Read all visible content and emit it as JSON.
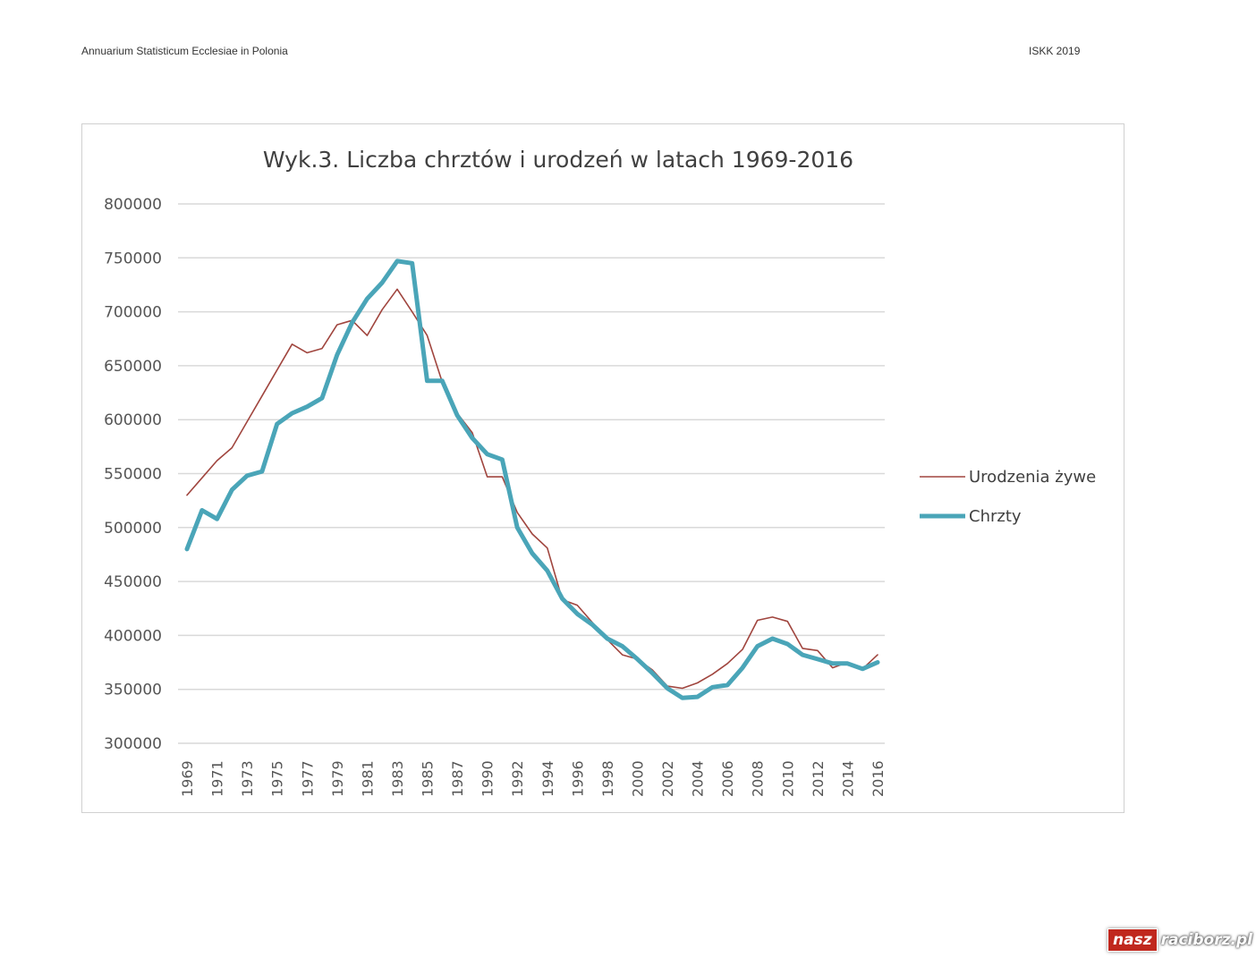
{
  "header": {
    "left": "Annuarium Statisticum Ecclesiae in Polonia",
    "right": "ISKK 2019"
  },
  "logo": {
    "part1": "nasz",
    "part2": "raciborz.pl"
  },
  "chart_data": {
    "type": "line",
    "title": "Wyk.3. Liczba chrztów i urodzeń w latach 1969-2016",
    "xlabel": "",
    "ylabel": "",
    "ylim": [
      300000,
      800000
    ],
    "yticks": [
      "300000",
      "350000",
      "400000",
      "450000",
      "500000",
      "550000",
      "600000",
      "650000",
      "700000",
      "750000",
      "800000"
    ],
    "grid": true,
    "legend": "right",
    "x": [
      "1969",
      "1970",
      "1971",
      "1972",
      "1973",
      "1974",
      "1975",
      "1976",
      "1977",
      "1978",
      "1979",
      "1980",
      "1981",
      "1982",
      "1983",
      "1984",
      "1985",
      "1986",
      "1987",
      "1988",
      "1990",
      "1991",
      "1992",
      "1993",
      "1994",
      "1995",
      "1996",
      "1997",
      "1998",
      "1999",
      "2000",
      "2001",
      "2002",
      "2003",
      "2004",
      "2005",
      "2006",
      "2007",
      "2008",
      "2009",
      "2010",
      "2011",
      "2012",
      "2013",
      "2014",
      "2015",
      "2016"
    ],
    "series": [
      {
        "name": "Urodzenia żywe",
        "color": "#a0453e",
        "values": [
          530000,
          546000,
          562000,
          574000,
          598000,
          622000,
          646000,
          670000,
          662000,
          666000,
          688000,
          692000,
          678000,
          702000,
          721000,
          700000,
          678000,
          635000,
          606000,
          588000,
          547000,
          547000,
          514000,
          494000,
          481000,
          433000,
          428000,
          412000,
          396000,
          382000,
          378000,
          368000,
          353000,
          351000,
          356000,
          364000,
          374000,
          387000,
          414000,
          417000,
          413000,
          388000,
          386000,
          370000,
          375000,
          369000,
          382000
        ]
      },
      {
        "name": "Chrzty",
        "color": "#4aa5b8",
        "values": [
          480000,
          516000,
          508000,
          535000,
          548000,
          552000,
          596000,
          606000,
          612000,
          620000,
          660000,
          690000,
          712000,
          727000,
          747000,
          745000,
          636000,
          636000,
          604000,
          583000,
          568000,
          563000,
          500000,
          476000,
          460000,
          434000,
          420000,
          410000,
          397000,
          390000,
          378000,
          365000,
          351000,
          342000,
          343000,
          352000,
          354000,
          370000,
          390000,
          397000,
          392000,
          382000,
          378000,
          374000,
          374000,
          369000,
          375000
        ]
      }
    ]
  }
}
